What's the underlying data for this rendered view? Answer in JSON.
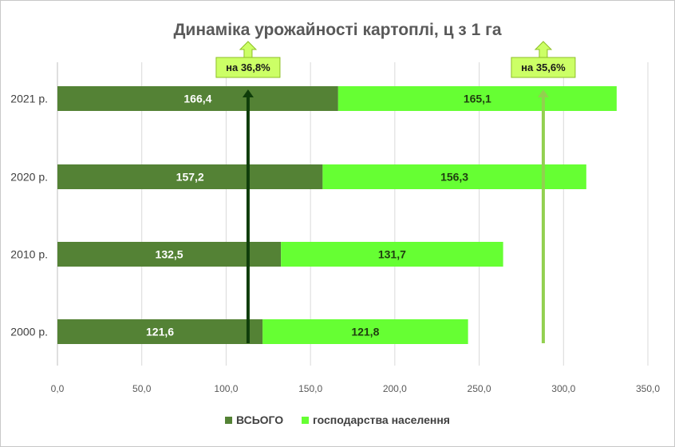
{
  "chart_data": {
    "type": "bar",
    "orientation": "horizontal",
    "stacked": true,
    "title": "Динаміка урожайності картоплі, ц з 1 га",
    "categories": [
      "2021 р.",
      "2020 р.",
      "2010 р.",
      "2000 р."
    ],
    "series": [
      {
        "name": "ВСЬОГО",
        "values": [
          166.4,
          157.2,
          132.5,
          121.6
        ],
        "labels": [
          "166,4",
          "157,2",
          "132,5",
          "121,6"
        ],
        "color": "#548235"
      },
      {
        "name": "господарства населення",
        "values": [
          165.1,
          156.3,
          131.7,
          121.8
        ],
        "labels": [
          "165,1",
          "156,3",
          "131,7",
          "121,8"
        ],
        "color": "#66ff33"
      }
    ],
    "xlim": [
      0,
      350
    ],
    "x_ticks": [
      0,
      50,
      100,
      150,
      200,
      250,
      300,
      350
    ],
    "x_tick_labels": [
      "0,0",
      "50,0",
      "100,0",
      "150,0",
      "200,0",
      "250,0",
      "300,0",
      "350,0"
    ],
    "grid": true,
    "legend_position": "bottom",
    "annotations": [
      {
        "text": "на 36,8%",
        "x": 113,
        "arrow_color": "#0f3d0a"
      },
      {
        "text": "на 35,6%",
        "x": 288,
        "arrow_color": "#92d050"
      }
    ],
    "callout_fill": "#ccff66"
  }
}
